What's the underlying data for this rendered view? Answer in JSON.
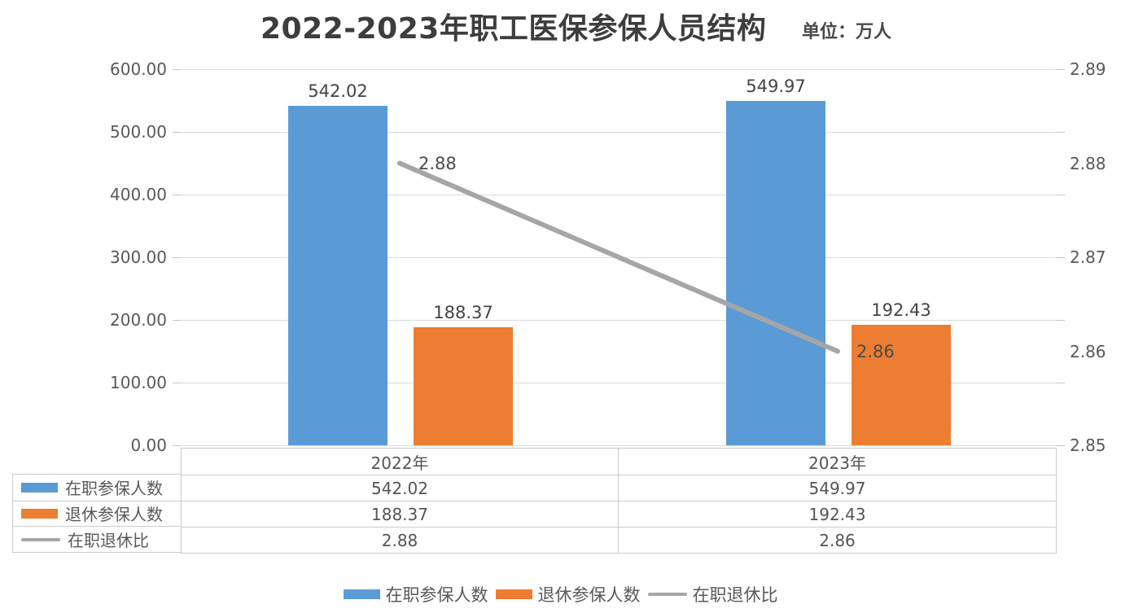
{
  "title": "2022-2023年职工医保参保人员结构",
  "unit_label": "单位：万人",
  "colors": {
    "active_bar": "#5B9BD5",
    "retired_bar": "#ED7D31",
    "ratio_line": "#A6A6A6",
    "gridline": "#DCDCDC",
    "table_border": "#CCCCCC",
    "axis_text": "#595959",
    "value_text": "#444444",
    "title_text": "#3D3D3D"
  },
  "chart_data": {
    "type": "bar",
    "subtype": "grouped bars with secondary-axis line",
    "title": "2022-2023年职工医保参保人员结构",
    "unit": "单位：万人",
    "categories": [
      "2022年",
      "2023年"
    ],
    "series": [
      {
        "key": "active-insured",
        "name": "在职参保人数",
        "type": "bar",
        "axis": "left",
        "color": "#5B9BD5",
        "values": [
          542.02,
          549.97
        ],
        "labels": [
          "542.02",
          "549.97"
        ]
      },
      {
        "key": "retired-insured",
        "name": "退休参保人数",
        "type": "bar",
        "axis": "left",
        "color": "#ED7D31",
        "values": [
          188.37,
          192.43
        ],
        "labels": [
          "188.37",
          "192.43"
        ]
      },
      {
        "key": "active-retired-ratio",
        "name": "在职退休比",
        "type": "line",
        "axis": "right",
        "color": "#A6A6A6",
        "values": [
          2.88,
          2.86
        ],
        "labels": [
          "2.88",
          "2.86"
        ]
      }
    ],
    "left_axis": {
      "min": 0,
      "max": 600,
      "tick_labels": [
        "600.00",
        "500.00",
        "400.00",
        "300.00",
        "200.00",
        "100.00",
        "0.00"
      ]
    },
    "right_axis": {
      "min": 2.85,
      "max": 2.89,
      "tick_labels": [
        "2.89",
        "2.88",
        "2.87",
        "2.86",
        "2.85"
      ]
    },
    "grid": true,
    "legend_position": "bottom"
  },
  "data_table": {
    "columns": [
      "2022年",
      "2023年"
    ],
    "rows": [
      {
        "label": "在职参保人数",
        "swatch": "bar-blue",
        "values": [
          "542.02",
          "549.97"
        ]
      },
      {
        "label": "退休参保人数",
        "swatch": "bar-orange",
        "values": [
          "188.37",
          "192.43"
        ]
      },
      {
        "label": "在职退休比",
        "swatch": "line-gray",
        "values": [
          "2.88",
          "2.86"
        ]
      }
    ]
  },
  "legend": {
    "items": [
      {
        "label": "在职参保人数",
        "swatch": "bar-blue"
      },
      {
        "label": "退休参保人数",
        "swatch": "bar-orange"
      },
      {
        "label": "在职退休比",
        "swatch": "line-gray"
      }
    ]
  }
}
